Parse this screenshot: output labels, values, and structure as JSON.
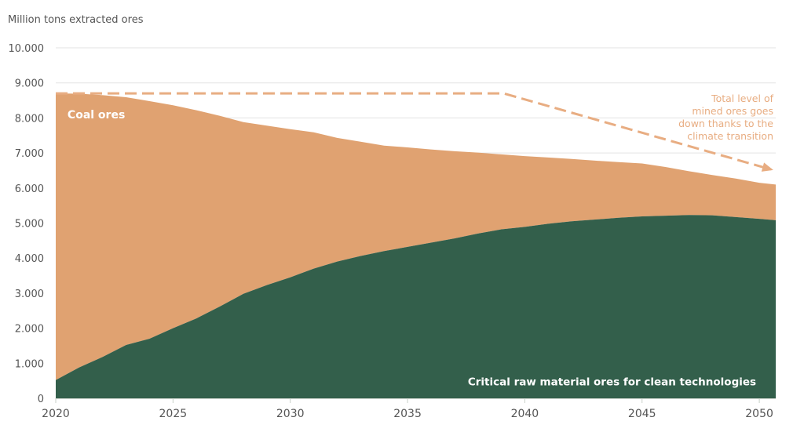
{
  "chart_data": {
    "type": "area",
    "stacked": true,
    "title": "",
    "ylabel": "Million tons extracted ores",
    "xlabel": "",
    "xlim": [
      2020,
      2050.7
    ],
    "ylim": [
      0,
      10000
    ],
    "x_ticks": [
      2020,
      2025,
      2030,
      2035,
      2040,
      2045,
      2050
    ],
    "x_tick_labels": [
      "2020",
      "2025",
      "2030",
      "2035",
      "2040",
      "2045",
      "2050"
    ],
    "y_ticks": [
      0,
      1000,
      2000,
      3000,
      4000,
      5000,
      6000,
      7000,
      8000,
      9000,
      10000
    ],
    "y_tick_labels": [
      "0",
      "1.000",
      "2.000",
      "3.000",
      "4.000",
      "5.000",
      "6.000",
      "7.000",
      "8.000",
      "9.000",
      "10.000"
    ],
    "grid": true,
    "x": [
      2020,
      2021,
      2022,
      2023,
      2024,
      2025,
      2026,
      2027,
      2028,
      2029,
      2030,
      2031,
      2032,
      2033,
      2034,
      2035,
      2036,
      2037,
      2038,
      2039,
      2040,
      2041,
      2042,
      2043,
      2044,
      2045,
      2046,
      2047,
      2048,
      2049,
      2050,
      2050.7
    ],
    "series": [
      {
        "name": "Critical raw material ores for clean technologies",
        "color": "#335f4b",
        "label_color": "#ffffff",
        "values": [
          520,
          880,
          1180,
          1520,
          1700,
          2000,
          2280,
          2620,
          2980,
          3230,
          3450,
          3700,
          3900,
          4060,
          4200,
          4320,
          4440,
          4560,
          4700,
          4820,
          4890,
          4980,
          5050,
          5100,
          5150,
          5190,
          5210,
          5230,
          5220,
          5170,
          5120,
          5080
        ]
      },
      {
        "name": "Coal ores",
        "color": "#e0a271",
        "label_color": "#ffffff",
        "total_values": [
          8700,
          8690,
          8650,
          8590,
          8480,
          8360,
          8220,
          8060,
          7880,
          7780,
          7680,
          7590,
          7430,
          7320,
          7210,
          7160,
          7100,
          7050,
          7010,
          6960,
          6910,
          6870,
          6830,
          6780,
          6740,
          6700,
          6600,
          6480,
          6370,
          6270,
          6150,
          6100
        ]
      }
    ],
    "trend_line": {
      "style": "dashed-arrow",
      "color": "#e8ad82",
      "points": [
        {
          "x": 2020,
          "y": 8700
        },
        {
          "x": 2039.1,
          "y": 8700
        },
        {
          "x": 2050.5,
          "y": 6530
        }
      ]
    },
    "annotations": [
      {
        "id": "coal",
        "text": "Coal ores",
        "x": 2020.5,
        "y": 8100
      },
      {
        "id": "critical",
        "text": "Critical raw material ores for clean technologies",
        "x": 2050.2,
        "y": 480
      },
      {
        "id": "trend",
        "lines": [
          "Total level of",
          "mined ores goes",
          "down thanks to the",
          "climate transition"
        ],
        "color": "#e8ad82",
        "x": 2050.2,
        "y": 8600
      }
    ],
    "colors": {
      "grid": "#e3e3e3",
      "axis": "#c8d0c8",
      "tick_text": "#555555"
    }
  }
}
